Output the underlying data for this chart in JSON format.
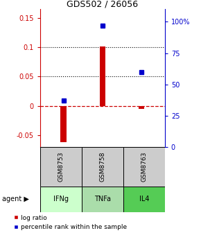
{
  "title": "GDS502 / 26056",
  "samples": [
    "GSM8753",
    "GSM8758",
    "GSM8763"
  ],
  "agents": [
    "IFNg",
    "TNFa",
    "IL4"
  ],
  "log_ratios": [
    -0.062,
    0.101,
    -0.005
  ],
  "percentiles": [
    37.0,
    97.0,
    60.0
  ],
  "ylim_left": [
    -0.07,
    0.165
  ],
  "ylim_right": [
    0,
    110
  ],
  "yticks_left": [
    -0.05,
    0.0,
    0.05,
    0.1,
    0.15
  ],
  "yticks_right": [
    0,
    25,
    50,
    75,
    100
  ],
  "ytick_labels_left": [
    "-0.05",
    "0",
    "0.05",
    "0.1",
    "0.15"
  ],
  "ytick_labels_right": [
    "0",
    "25",
    "50",
    "75",
    "100%"
  ],
  "grid_lines": [
    0.05,
    0.1
  ],
  "bar_color": "#cc0000",
  "marker_color": "#0000cc",
  "zero_line_color": "#cc0000",
  "agent_colors": [
    "#ccffcc",
    "#aaddaa",
    "#55cc55"
  ],
  "sample_bg_color": "#cccccc",
  "legend_bar_label": "log ratio",
  "legend_marker_label": "percentile rank within the sample"
}
